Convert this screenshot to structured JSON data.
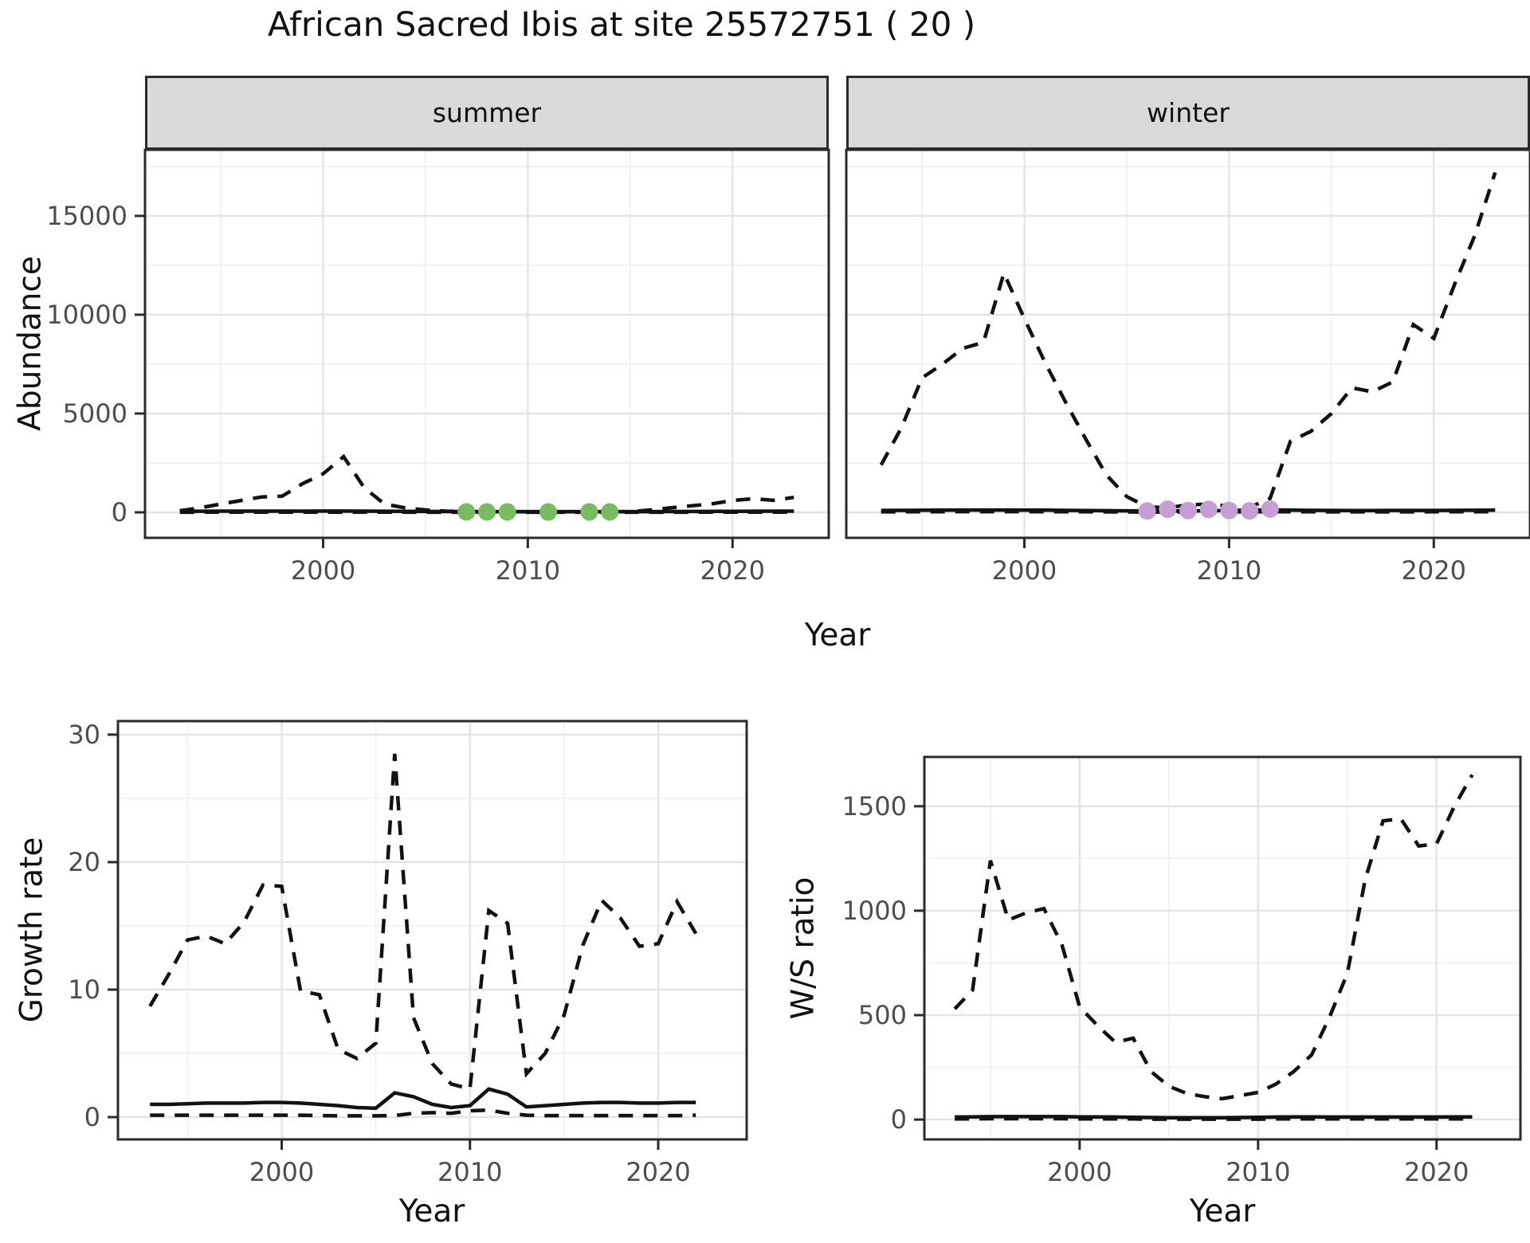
{
  "title": "African Sacred Ibis at site 25572751 ( 20 )",
  "colors": {
    "line": "#121212",
    "summer_points": "#77BC5E",
    "winter_points": "#C59FD4",
    "strip_fill": "#D9D9D9",
    "grid_major": "#E4E4E4",
    "grid_minor": "#F1F1F1",
    "tick_label": "#4D4D4D",
    "panel_border": "#2B2B2B"
  },
  "strips": {
    "summer": "summer",
    "winter": "winter"
  },
  "axis_titles": {
    "abundance": "Abundance",
    "growth": "Growth rate",
    "ws": "W/S ratio",
    "year_top": "Year",
    "year_bottom_left": "Year",
    "year_bottom_right": "Year"
  },
  "chart_data": [
    {
      "id": "summer",
      "type": "line",
      "facet": "summer",
      "xlabel": "Year",
      "ylabel": "Abundance",
      "x_domain": [
        1991.3,
        2024.7
      ],
      "y_domain": [
        -1290,
        18345
      ],
      "x_ticks": {
        "values": [
          2000,
          2010,
          2020
        ],
        "labels": [
          "2000",
          "2010",
          "2020"
        ],
        "minor": [
          1995,
          2005,
          2015
        ]
      },
      "y_ticks": {
        "values": [
          0,
          5000,
          10000,
          15000
        ],
        "labels": [
          "0",
          "5000",
          "10000",
          "15000"
        ],
        "minor": [
          2500,
          7500,
          12500,
          17500
        ]
      },
      "x": [
        1993,
        1994,
        1995,
        1996,
        1997,
        1998,
        1999,
        2000,
        2001,
        2002,
        2003,
        2004,
        2005,
        2006,
        2007,
        2008,
        2009,
        2010,
        2011,
        2012,
        2013,
        2014,
        2015,
        2016,
        2017,
        2018,
        2019,
        2020,
        2021,
        2022,
        2023
      ],
      "series": [
        {
          "name": "upper-ci",
          "style": "dashed",
          "values": [
            80,
            230,
            420,
            600,
            780,
            820,
            1450,
            1950,
            2820,
            1250,
            420,
            230,
            120,
            60,
            40,
            30,
            28,
            28,
            28,
            32,
            28,
            28,
            38,
            120,
            230,
            330,
            430,
            600,
            690,
            610,
            760
          ]
        },
        {
          "name": "lower-ci",
          "style": "dashed",
          "values": [
            6,
            7,
            8,
            9,
            10,
            10,
            11,
            12,
            13,
            11,
            9,
            7,
            6,
            5,
            4,
            4,
            4,
            3,
            3,
            3,
            3,
            3,
            4,
            5,
            6,
            7,
            8,
            9,
            9,
            10,
            10
          ]
        },
        {
          "name": "estimate",
          "style": "solid",
          "values": [
            55,
            58,
            60,
            62,
            62,
            60,
            62,
            64,
            66,
            60,
            55,
            50,
            46,
            42,
            40,
            38,
            37,
            36,
            36,
            35,
            35,
            35,
            36,
            38,
            42,
            46,
            50,
            54,
            57,
            59,
            61
          ]
        }
      ],
      "points": {
        "name": "summer-observations",
        "color_key": "summer_points",
        "x": [
          2007,
          2008,
          2009,
          2011,
          2013,
          2014
        ],
        "y": [
          24,
          20,
          22,
          18,
          22,
          20
        ]
      }
    },
    {
      "id": "winter",
      "type": "line",
      "facet": "winter",
      "xlabel": "Year",
      "ylabel": "Abundance",
      "x_domain": [
        1991.3,
        2024.7
      ],
      "y_domain": [
        -1290,
        18345
      ],
      "x_ticks": {
        "values": [
          2000,
          2010,
          2020
        ],
        "labels": [
          "2000",
          "2010",
          "2020"
        ],
        "minor": [
          1995,
          2005,
          2015
        ]
      },
      "y_ticks": {
        "values": [],
        "labels": [],
        "minor": [
          2500,
          7500,
          12500,
          17500
        ],
        "gridline_values": [
          0,
          5000,
          10000,
          15000
        ]
      },
      "x": [
        1993,
        1994,
        1995,
        1996,
        1997,
        1998,
        1999,
        2000,
        2001,
        2002,
        2003,
        2004,
        2005,
        2006,
        2007,
        2008,
        2009,
        2010,
        2011,
        2012,
        2013,
        2014,
        2015,
        2016,
        2017,
        2018,
        2019,
        2020,
        2021,
        2022,
        2023
      ],
      "series": [
        {
          "name": "upper-ci",
          "style": "dashed",
          "values": [
            2400,
            4300,
            6800,
            7500,
            8300,
            8600,
            12100,
            9800,
            7600,
            5600,
            3700,
            1900,
            800,
            280,
            230,
            380,
            420,
            310,
            260,
            700,
            3600,
            4100,
            5000,
            6300,
            6100,
            6600,
            9500,
            8800,
            11500,
            14000,
            17200
          ]
        },
        {
          "name": "lower-ci",
          "style": "dashed",
          "values": [
            26,
            28,
            31,
            33,
            35,
            36,
            36,
            35,
            33,
            30,
            27,
            24,
            21,
            18,
            17,
            18,
            21,
            25,
            30,
            34,
            31,
            27,
            25,
            25,
            25,
            25,
            26,
            27,
            28,
            29,
            30
          ]
        },
        {
          "name": "estimate",
          "style": "solid",
          "values": [
            95,
            100,
            106,
            112,
            116,
            118,
            118,
            114,
            108,
            100,
            92,
            85,
            78,
            72,
            70,
            73,
            80,
            92,
            110,
            122,
            112,
            102,
            96,
            94,
            94,
            95,
            96,
            98,
            101,
            104,
            108
          ]
        }
      ],
      "points": {
        "name": "winter-observations",
        "color_key": "winter_points",
        "x": [
          2006,
          2007,
          2008,
          2009,
          2010,
          2011,
          2012
        ],
        "y": [
          70,
          160,
          90,
          150,
          95,
          75,
          170
        ]
      }
    },
    {
      "id": "growth",
      "type": "line",
      "facet": null,
      "xlabel": "Year",
      "ylabel": "Growth rate",
      "x_domain": [
        1991.3,
        2024.7
      ],
      "y_domain": [
        -1.75,
        31.06
      ],
      "x_ticks": {
        "values": [
          2000,
          2010,
          2020
        ],
        "labels": [
          "2000",
          "2010",
          "2020"
        ],
        "minor": [
          1995,
          2005,
          2015
        ]
      },
      "y_ticks": {
        "values": [
          0,
          10,
          20,
          30
        ],
        "labels": [
          "0",
          "10",
          "20",
          "30"
        ],
        "minor": [
          5,
          15,
          25
        ]
      },
      "x": [
        1993,
        1994,
        1995,
        1996,
        1997,
        1998,
        1999,
        2000,
        2001,
        2002,
        2003,
        2004,
        2005,
        2006,
        2007,
        2008,
        2009,
        2010,
        2011,
        2012,
        2013,
        2014,
        2015,
        2016,
        2017,
        2018,
        2019,
        2020,
        2021,
        2022
      ],
      "series": [
        {
          "name": "upper-ci",
          "style": "dashed",
          "values": [
            8.7,
            11.2,
            13.9,
            14.2,
            13.6,
            15.3,
            18.2,
            18.1,
            9.9,
            9.6,
            5.3,
            4.6,
            5.8,
            28.5,
            7.8,
            4.2,
            2.6,
            2.2,
            16.2,
            15.2,
            3.4,
            5.0,
            8.0,
            13.5,
            17.0,
            15.6,
            13.4,
            13.6,
            16.9,
            14.4
          ]
        },
        {
          "name": "lower-ci",
          "style": "dashed",
          "values": [
            0.15,
            0.15,
            0.15,
            0.15,
            0.15,
            0.15,
            0.15,
            0.15,
            0.15,
            0.12,
            0.1,
            0.1,
            0.1,
            0.12,
            0.3,
            0.35,
            0.3,
            0.5,
            0.55,
            0.3,
            0.15,
            0.12,
            0.12,
            0.12,
            0.12,
            0.12,
            0.12,
            0.12,
            0.12,
            0.15
          ]
        },
        {
          "name": "estimate",
          "style": "solid",
          "values": [
            1.0,
            1.0,
            1.05,
            1.1,
            1.1,
            1.1,
            1.15,
            1.15,
            1.1,
            1.0,
            0.9,
            0.75,
            0.7,
            1.9,
            1.6,
            1.0,
            0.75,
            0.9,
            2.2,
            1.8,
            0.8,
            0.9,
            1.0,
            1.1,
            1.15,
            1.15,
            1.1,
            1.1,
            1.15,
            1.15
          ]
        }
      ],
      "points": null
    },
    {
      "id": "ws",
      "type": "line",
      "facet": null,
      "xlabel": "Year",
      "ylabel": "W/S ratio",
      "x_domain": [
        1991.3,
        2024.7
      ],
      "y_domain": [
        -95,
        1736
      ],
      "x_ticks": {
        "values": [
          2000,
          2010,
          2020
        ],
        "labels": [
          "2000",
          "2010",
          "2020"
        ],
        "minor": [
          1995,
          2005,
          2015
        ]
      },
      "y_ticks": {
        "values": [
          0,
          500,
          1000,
          1500
        ],
        "labels": [
          "0",
          "500",
          "1000",
          "1500"
        ],
        "minor": [
          250,
          750,
          1250
        ]
      },
      "x": [
        1993,
        1994,
        1995,
        1996,
        1997,
        1998,
        1999,
        2000,
        2001,
        2002,
        2003,
        2004,
        2005,
        2006,
        2007,
        2008,
        2009,
        2010,
        2011,
        2012,
        2013,
        2014,
        2015,
        2016,
        2017,
        2018,
        2019,
        2020,
        2021,
        2022
      ],
      "series": [
        {
          "name": "upper-ci",
          "style": "dashed",
          "values": [
            530,
            620,
            1240,
            955,
            990,
            1010,
            840,
            540,
            450,
            370,
            390,
            230,
            160,
            125,
            110,
            100,
            115,
            130,
            170,
            230,
            310,
            490,
            700,
            1150,
            1430,
            1440,
            1310,
            1320,
            1500,
            1650
          ]
        },
        {
          "name": "lower-ci",
          "style": "dashed",
          "values": [
            3,
            3,
            4,
            4,
            4,
            4,
            4,
            3,
            3,
            3,
            3,
            2,
            2,
            2,
            2,
            2,
            2,
            2,
            3,
            3,
            3,
            3,
            3,
            3,
            3,
            3,
            3,
            3,
            3,
            3
          ]
        },
        {
          "name": "estimate",
          "style": "solid",
          "values": [
            12,
            13,
            14,
            14,
            14,
            14,
            14,
            13,
            13,
            12,
            11,
            10,
            9,
            9,
            9,
            9,
            10,
            11,
            12,
            13,
            13,
            12,
            12,
            12,
            12,
            12,
            12,
            12,
            13,
            13
          ]
        }
      ],
      "points": null
    }
  ]
}
